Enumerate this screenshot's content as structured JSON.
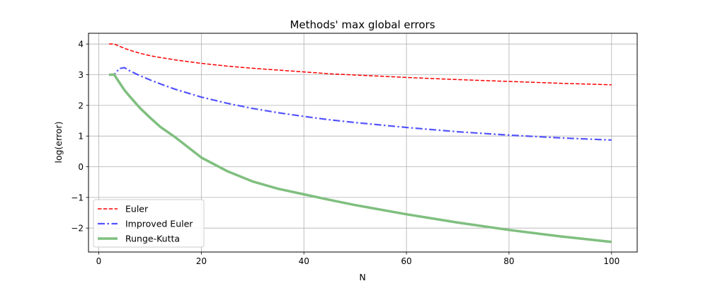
{
  "chart_data": {
    "type": "line",
    "title": "Methods' max global errors",
    "xlabel": "N",
    "ylabel": "log(error)",
    "xlim": [
      -2.0,
      105.0
    ],
    "ylim": [
      -2.78,
      4.35
    ],
    "xticks": [
      0,
      20,
      40,
      60,
      80,
      100
    ],
    "yticks": [
      -2,
      -1,
      0,
      1,
      2,
      3,
      4
    ],
    "ytick_labels": [
      "−2",
      "−1",
      "0",
      "1",
      "2",
      "3",
      "4"
    ],
    "grid": true,
    "legend_position": "lower-left",
    "series": [
      {
        "name": "Euler",
        "color": "#ff0000",
        "line_style": "dashed",
        "x": [
          2,
          3,
          4,
          5,
          6,
          8,
          10,
          12,
          15,
          20,
          25,
          30,
          35,
          40,
          45,
          50,
          60,
          70,
          80,
          90,
          100
        ],
        "y": [
          4.0,
          4.0,
          3.93,
          3.86,
          3.8,
          3.7,
          3.62,
          3.56,
          3.48,
          3.37,
          3.28,
          3.21,
          3.15,
          3.09,
          3.03,
          2.99,
          2.91,
          2.84,
          2.78,
          2.72,
          2.67
        ]
      },
      {
        "name": "Improved Euler",
        "color": "#4040ff",
        "line_style": "dashdot",
        "x": [
          2,
          3,
          4,
          5,
          6,
          8,
          10,
          12,
          15,
          20,
          25,
          30,
          35,
          40,
          45,
          50,
          60,
          70,
          80,
          90,
          100
        ],
        "y": [
          3.0,
          3.0,
          3.2,
          3.23,
          3.13,
          2.97,
          2.83,
          2.7,
          2.52,
          2.27,
          2.07,
          1.9,
          1.76,
          1.64,
          1.53,
          1.44,
          1.28,
          1.14,
          1.03,
          0.94,
          0.87
        ]
      },
      {
        "name": "Runge-Kutta",
        "color": "#7fbf7f",
        "line_style": "solid",
        "x": [
          2,
          3,
          4,
          5,
          6,
          8,
          10,
          12,
          15,
          20,
          25,
          30,
          35,
          40,
          45,
          50,
          60,
          70,
          80,
          90,
          100
        ],
        "y": [
          3.0,
          3.0,
          2.75,
          2.5,
          2.3,
          1.92,
          1.6,
          1.3,
          0.95,
          0.3,
          -0.14,
          -0.48,
          -0.72,
          -0.9,
          -1.08,
          -1.25,
          -1.55,
          -1.82,
          -2.06,
          -2.27,
          -2.45
        ]
      }
    ]
  }
}
